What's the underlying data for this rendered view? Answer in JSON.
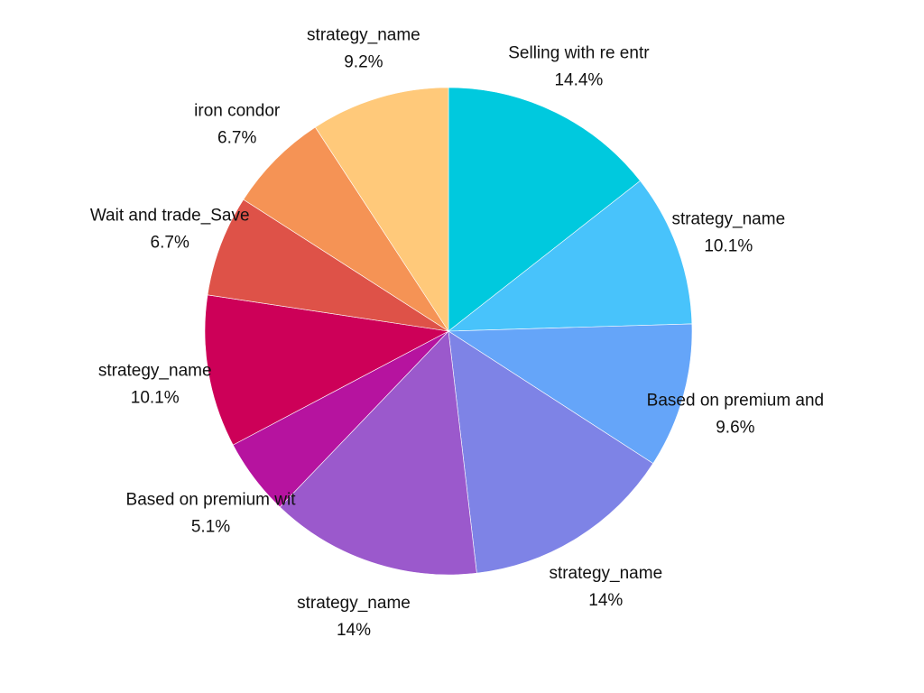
{
  "chart_data": {
    "type": "pie",
    "slices": [
      {
        "label": "Selling with re entr",
        "value": 14.4,
        "display": "14.4%",
        "color": "#00C9DE"
      },
      {
        "label": "strategy_name",
        "value": 10.1,
        "display": "10.1%",
        "color": "#48C3FB"
      },
      {
        "label": "Based on premium and",
        "value": 9.6,
        "display": "9.6%",
        "color": "#65A5F9"
      },
      {
        "label": "strategy_name",
        "value": 14.0,
        "display": "14%",
        "color": "#7E83E6"
      },
      {
        "label": "strategy_name",
        "value": 14.0,
        "display": "14%",
        "color": "#9B59CC"
      },
      {
        "label": "Based on premium wit",
        "value": 5.1,
        "display": "5.1%",
        "color": "#B6139F"
      },
      {
        "label": "strategy_name",
        "value": 10.1,
        "display": "10.1%",
        "color": "#CD0058"
      },
      {
        "label": "Wait and trade_Save",
        "value": 6.7,
        "display": "6.7%",
        "color": "#DE5248"
      },
      {
        "label": "iron condor",
        "value": 6.7,
        "display": "6.7%",
        "color": "#F59355"
      },
      {
        "label": "strategy_name",
        "value": 9.2,
        "display": "9.2%",
        "color": "#FFC97A"
      }
    ],
    "start": "top",
    "direction": "clockwise"
  }
}
